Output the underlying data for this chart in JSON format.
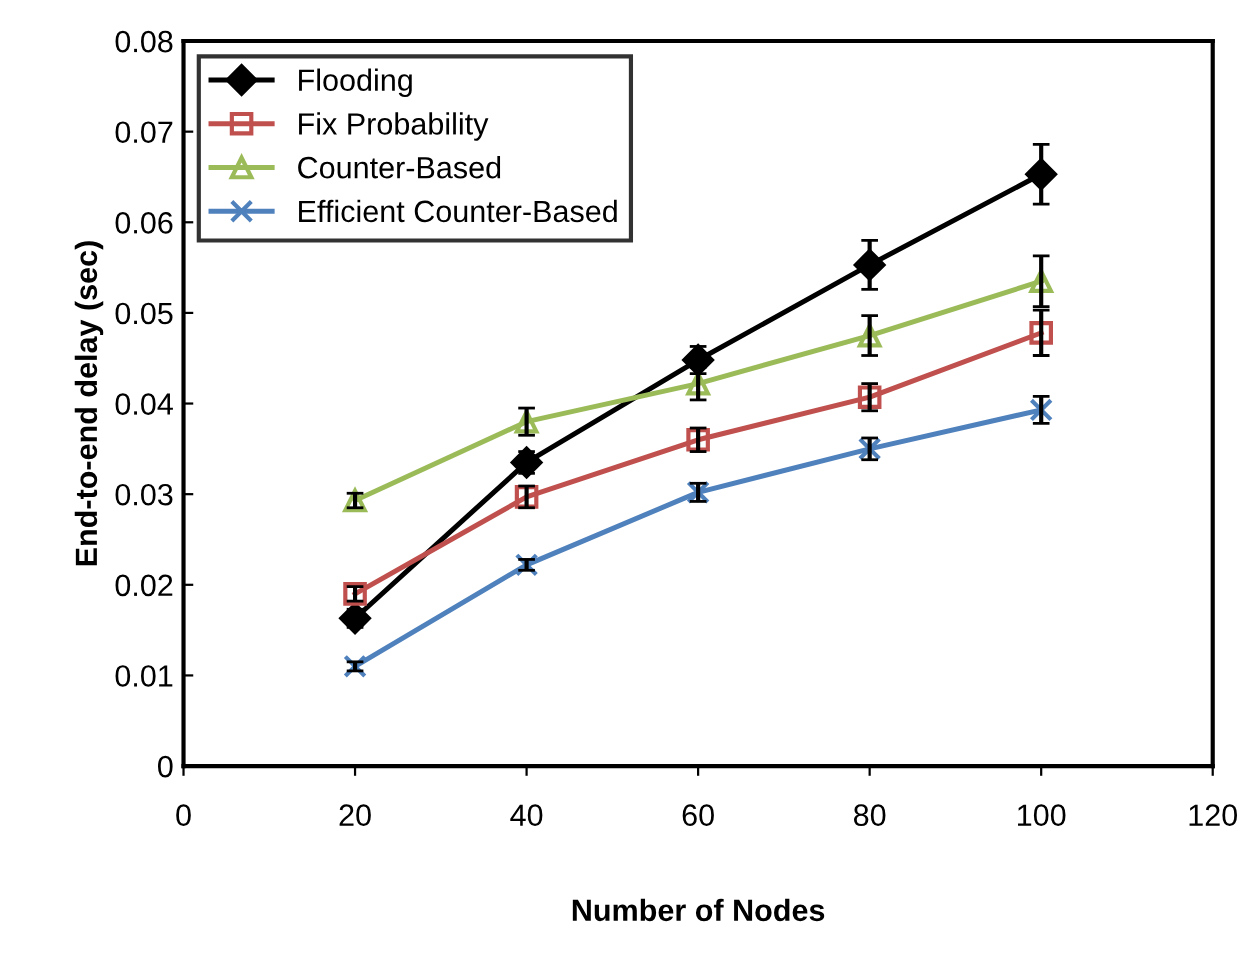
{
  "chart_data": {
    "type": "line",
    "xlabel": "Number of Nodes",
    "ylabel": "End-to-end delay (sec)",
    "x": [
      20,
      40,
      60,
      80,
      100
    ],
    "series": [
      {
        "name": "Flooding",
        "color": "#000000",
        "marker": "diamond",
        "values": [
          0.0163,
          0.0335,
          0.0448,
          0.0553,
          0.0653
        ],
        "errors": [
          0.001,
          0.0012,
          0.0015,
          0.0027,
          0.0033
        ]
      },
      {
        "name": "Fix Probability",
        "color": "#c0504d",
        "marker": "square",
        "values": [
          0.019,
          0.0297,
          0.036,
          0.0407,
          0.0478
        ],
        "errors": [
          0.0008,
          0.0012,
          0.0013,
          0.0015,
          0.0025
        ]
      },
      {
        "name": "Counter-Based",
        "color": "#9bbb59",
        "marker": "triangle",
        "values": [
          0.0293,
          0.038,
          0.0422,
          0.0475,
          0.0535
        ],
        "errors": [
          0.0008,
          0.0015,
          0.0018,
          0.0022,
          0.0028
        ]
      },
      {
        "name": "Efficient Counter-Based",
        "color": "#4f81bd",
        "marker": "cross",
        "values": [
          0.011,
          0.0222,
          0.0302,
          0.035,
          0.0393
        ],
        "errors": [
          0.0005,
          0.0006,
          0.001,
          0.0012,
          0.0015
        ]
      }
    ],
    "xlim": [
      0,
      120
    ],
    "xticks": [
      0,
      20,
      40,
      60,
      80,
      100,
      120
    ],
    "ylim": [
      0,
      0.08
    ],
    "yticks": [
      {
        "value": 0,
        "label": "0"
      },
      0.01,
      0.02,
      0.03,
      0.04,
      0.05,
      0.06,
      0.07,
      0.08
    ],
    "grid": false,
    "legend": "top left"
  }
}
